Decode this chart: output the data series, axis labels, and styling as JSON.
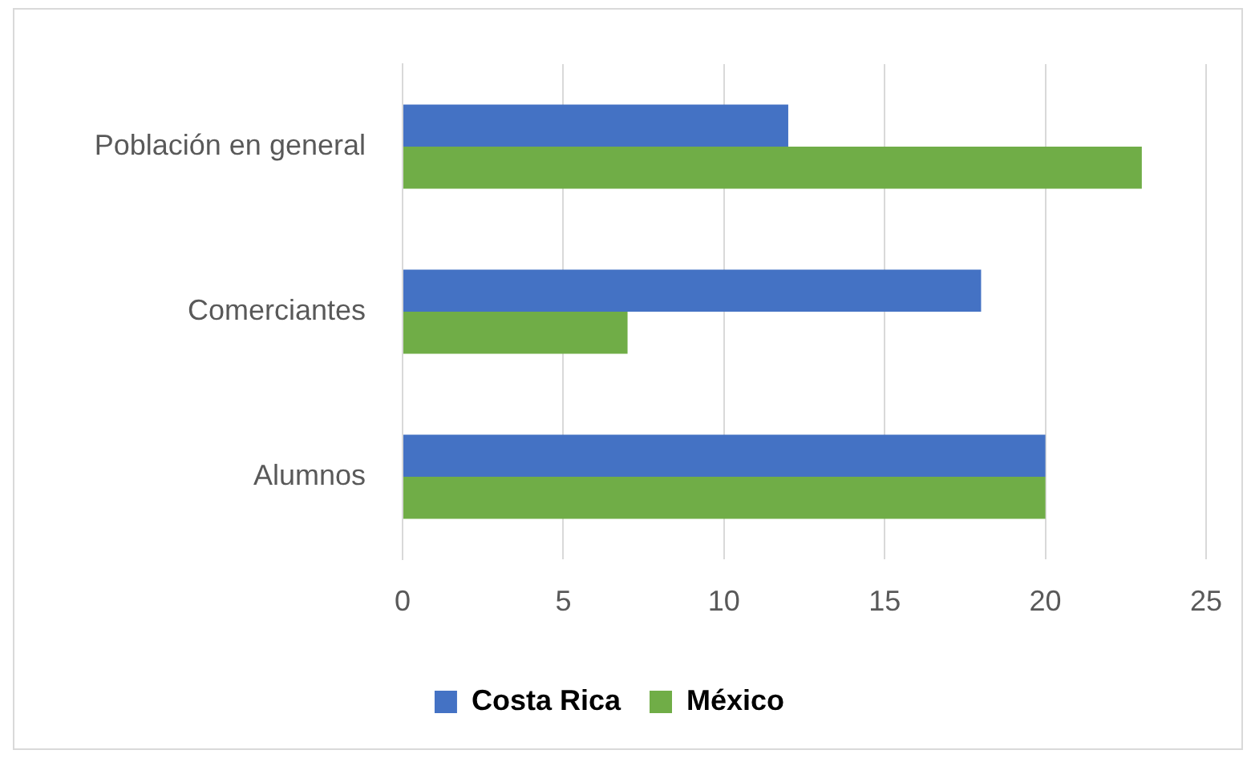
{
  "chart_data": {
    "type": "bar",
    "orientation": "horizontal",
    "categories": [
      "Población en general",
      "Comerciantes",
      "Alumnos"
    ],
    "series": [
      {
        "name": "Costa Rica",
        "color": "#4472c4",
        "values": [
          12,
          18,
          20
        ]
      },
      {
        "name": "México",
        "color": "#70ad47",
        "values": [
          23,
          7,
          20
        ]
      }
    ],
    "xlim": [
      0,
      25
    ],
    "xticks": [
      0,
      5,
      10,
      15,
      20,
      25
    ],
    "grid": "x",
    "legend": "bottom"
  }
}
